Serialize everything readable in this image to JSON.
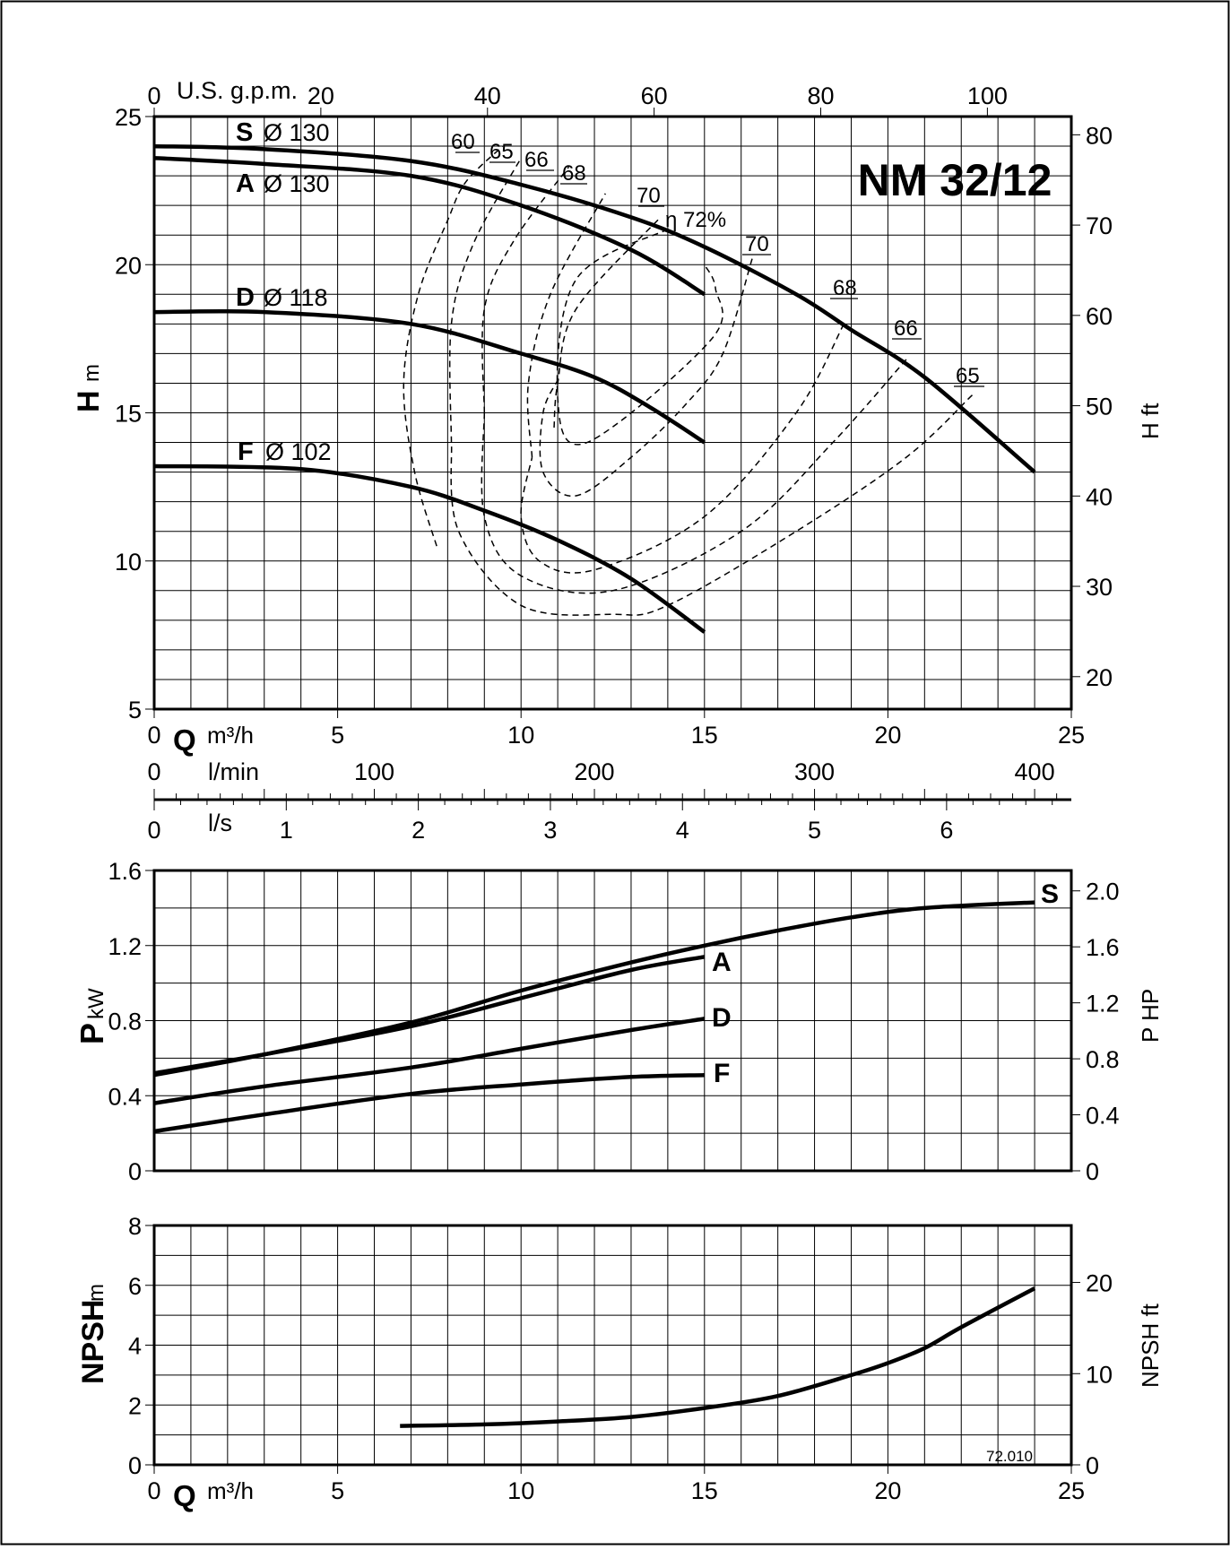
{
  "document": {
    "code": "72.010"
  },
  "chart_data": [
    {
      "type": "line",
      "title": "NM 32/12",
      "xlabel": "Q",
      "xunit": "m³/h",
      "ylabel": "H",
      "yunit": "m",
      "y2label": "H ft",
      "xlim": [
        0,
        25
      ],
      "ylim": [
        5,
        25
      ],
      "x_ticks": [
        0,
        5,
        10,
        15,
        20,
        25
      ],
      "y_ticks": [
        5,
        10,
        15,
        20,
        25
      ],
      "y2_ticks": [
        20,
        30,
        40,
        50,
        60,
        70,
        80
      ],
      "top_axis": {
        "label": "U.S. g.p.m.",
        "ticks": [
          0,
          20,
          40,
          60,
          80,
          100
        ]
      },
      "grid": true,
      "series": [
        {
          "name": "S",
          "diameter": "Ø 130",
          "x": [
            0,
            3,
            7,
            10,
            13,
            15,
            17.5,
            19,
            21,
            24
          ],
          "y": [
            24,
            23.9,
            23.5,
            22.7,
            21.6,
            20.6,
            19,
            17.8,
            16.2,
            13
          ]
        },
        {
          "name": "A",
          "diameter": "Ø 130",
          "x": [
            0,
            3,
            7,
            10,
            13,
            15
          ],
          "y": [
            23.6,
            23.4,
            23,
            22,
            20.5,
            19
          ]
        },
        {
          "name": "D",
          "diameter": "Ø 118",
          "x": [
            0,
            3,
            7,
            10,
            12,
            13.5,
            15
          ],
          "y": [
            18.4,
            18.4,
            18,
            17,
            16.2,
            15.2,
            14
          ]
        },
        {
          "name": "F",
          "diameter": "Ø 102",
          "x": [
            0,
            4,
            7,
            9,
            11,
            13,
            15
          ],
          "y": [
            13.2,
            13.1,
            12.5,
            11.7,
            10.7,
            9.4,
            7.6
          ]
        }
      ],
      "efficiency_labels": [
        "60",
        "65",
        "66",
        "68",
        "70",
        "η 72%",
        "70",
        "68",
        "66",
        "65"
      ],
      "efficiency_curves": [
        {
          "label": "60",
          "x": [
            7.7,
            7.1,
            6.8,
            7.2,
            8.0,
            8.5,
            9.5
          ],
          "y": [
            10.5,
            13,
            16,
            19,
            21.5,
            22.8,
            24
          ]
        },
        {
          "label": "65 (left)",
          "x": [
            8.1,
            8.1,
            8.7,
            10.0
          ],
          "y": [
            14,
            18,
            20.7,
            23.6
          ]
        },
        {
          "label": "66 (left)",
          "x": [
            9,
            9,
            9.8,
            11.3
          ],
          "y": [
            15,
            18.5,
            20.8,
            23.3
          ]
        },
        {
          "label": "68 (left)",
          "x": [
            10.3,
            10.2,
            10.8,
            12.3
          ],
          "y": [
            13.5,
            16,
            19,
            22.4
          ]
        },
        {
          "label": "70 (left)",
          "x": [
            10.9,
            11,
            11.5,
            13.8
          ],
          "y": [
            14.5,
            16,
            18.5,
            21.6
          ]
        },
        {
          "label": "η 72% loop",
          "x": [
            14,
            11.5,
            11,
            11.8,
            15.2,
            15.3,
            15
          ],
          "y": [
            21.2,
            19.5,
            15.5,
            14,
            17.5,
            19.2,
            20
          ]
        },
        {
          "label": "70 (right)",
          "x": [
            16.3,
            15.5,
            14.5,
            13,
            11.5,
            10.6,
            10.6,
            11.0
          ],
          "y": [
            20.2,
            17,
            15.3,
            13.5,
            12.2,
            13,
            15,
            16.1
          ]
        },
        {
          "label": "68 (right)",
          "x": [
            18.8,
            17.5,
            15,
            12,
            10.5,
            10,
            10.3
          ],
          "y": [
            18,
            15,
            11.5,
            9.7,
            10,
            11.5,
            13.5
          ]
        },
        {
          "label": "66 (right)",
          "x": [
            20.5,
            18.5,
            16,
            12.5,
            10,
            9,
            9
          ],
          "y": [
            16.8,
            14,
            11,
            9,
            9.5,
            11.5,
            15
          ]
        },
        {
          "label": "65 (right)",
          "x": [
            22.3,
            20.5,
            17.5,
            14,
            12.5,
            10,
            8.3,
            8.1
          ],
          "y": [
            15.6,
            13.5,
            11,
            8.5,
            8.2,
            8.5,
            11,
            14
          ]
        }
      ]
    },
    {
      "type": "axis",
      "label": "l/min",
      "ticks": [
        0,
        100,
        200,
        300,
        400
      ]
    },
    {
      "type": "axis",
      "label": "l/s",
      "ticks": [
        0,
        1,
        2,
        3,
        4,
        5,
        6
      ]
    },
    {
      "type": "line",
      "ylabel": "P",
      "yunit": "kW",
      "y2label": "P HP",
      "xlim": [
        0,
        25
      ],
      "ylim": [
        0,
        1.6
      ],
      "y_ticks": [
        "0",
        "0.4",
        "0.8",
        "1.2",
        "1.6"
      ],
      "y2_ticks": [
        "0",
        "0.4",
        "0.8",
        "1.2",
        "1.6",
        "2.0"
      ],
      "grid": true,
      "series": [
        {
          "name": "S",
          "x": [
            0,
            3,
            7,
            10,
            13,
            15,
            17,
            19,
            21,
            24
          ],
          "y": [
            0.51,
            0.62,
            0.79,
            0.96,
            1.11,
            1.2,
            1.28,
            1.35,
            1.4,
            1.43
          ]
        },
        {
          "name": "A",
          "x": [
            0,
            3,
            7,
            10,
            13,
            15
          ],
          "y": [
            0.52,
            0.62,
            0.77,
            0.92,
            1.07,
            1.14
          ]
        },
        {
          "name": "D",
          "x": [
            0,
            3,
            7,
            10,
            13,
            15
          ],
          "y": [
            0.36,
            0.45,
            0.55,
            0.65,
            0.75,
            0.81
          ]
        },
        {
          "name": "F",
          "x": [
            0,
            3,
            7,
            10,
            13,
            15
          ],
          "y": [
            0.21,
            0.3,
            0.41,
            0.46,
            0.5,
            0.51
          ]
        }
      ]
    },
    {
      "type": "line",
      "ylabel": "NPSH",
      "yunit": "m",
      "y2label": "NPSH ft",
      "xlabel": "Q",
      "xunit": "m³/h",
      "xlim": [
        0,
        25
      ],
      "ylim": [
        0,
        8
      ],
      "x_ticks": [
        0,
        5,
        10,
        15,
        20,
        25
      ],
      "y_ticks": [
        0,
        2,
        4,
        6,
        8
      ],
      "y2_ticks": [
        0,
        10,
        20
      ],
      "grid": true,
      "series": [
        {
          "x": [
            6.7,
            9,
            11,
            13,
            15,
            17,
            19,
            20,
            21,
            22,
            24
          ],
          "y": [
            1.3,
            1.35,
            1.45,
            1.6,
            1.9,
            2.3,
            3.0,
            3.4,
            3.9,
            4.6,
            5.9
          ]
        }
      ]
    }
  ]
}
